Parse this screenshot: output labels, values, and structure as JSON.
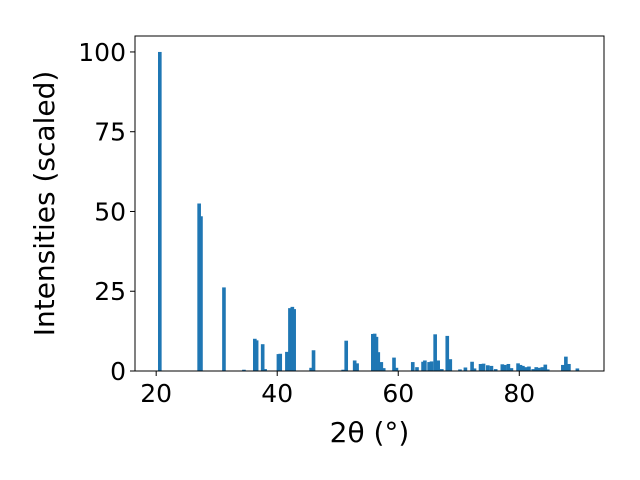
{
  "chart_data": {
    "type": "bar",
    "title": "",
    "xlabel": "2θ (°)",
    "ylabel": "Intensities (scaled)",
    "xlim": [
      16.5,
      94
    ],
    "ylim": [
      0,
      105
    ],
    "xticks": [
      20,
      40,
      60,
      80
    ],
    "yticks": [
      0,
      25,
      50,
      75,
      100
    ],
    "xtick_labels": [
      "20",
      "40",
      "60",
      "80"
    ],
    "ytick_labels": [
      "0",
      "25",
      "50",
      "75",
      "100"
    ],
    "grid": false,
    "legend": "none",
    "bar_color": "#1f77b4",
    "bar_width": 0.6,
    "x": [
      20.6,
      27.1,
      27.4,
      31.2,
      34.5,
      36.3,
      36.6,
      37.6,
      38.0,
      40.2,
      40.5,
      41.6,
      42.1,
      42.5,
      42.8,
      45.6,
      46.0,
      50.9,
      51.4,
      52.8,
      53.2,
      55.8,
      56.1,
      56.4,
      56.7,
      57.2,
      57.6,
      59.3,
      59.7,
      62.4,
      63.1,
      64.1,
      64.4,
      65.1,
      65.5,
      66.1,
      66.6,
      67.2,
      68.1,
      68.6,
      70.2,
      71.1,
      72.2,
      72.6,
      73.6,
      74.1,
      74.8,
      75.4,
      76.1,
      77.2,
      77.6,
      78.2,
      78.7,
      79.8,
      80.2,
      80.6,
      81.1,
      81.6,
      82.3,
      82.8,
      83.2,
      83.8,
      84.3,
      84.7,
      87.2,
      87.7,
      88.2,
      89.6
    ],
    "values": [
      100,
      52.5,
      48.5,
      26.2,
      0.4,
      10.1,
      9.6,
      8.4,
      0.6,
      5.3,
      5.4,
      6.0,
      19.7,
      20.1,
      19.4,
      1.0,
      6.5,
      0.4,
      9.5,
      3.3,
      2.4,
      11.6,
      11.7,
      10.7,
      5.9,
      2.8,
      0.9,
      4.2,
      1.0,
      2.8,
      1.2,
      2.9,
      3.3,
      2.8,
      3.0,
      11.5,
      3.3,
      0.6,
      11.0,
      3.7,
      0.5,
      1.1,
      2.9,
      0.8,
      2.2,
      2.3,
      1.8,
      1.6,
      0.6,
      2.1,
      1.9,
      2.2,
      0.9,
      2.4,
      1.9,
      1.6,
      1.2,
      1.4,
      0.6,
      1.2,
      1.0,
      1.2,
      2.0,
      0.5,
      1.9,
      4.5,
      2.2,
      0.8
    ]
  }
}
